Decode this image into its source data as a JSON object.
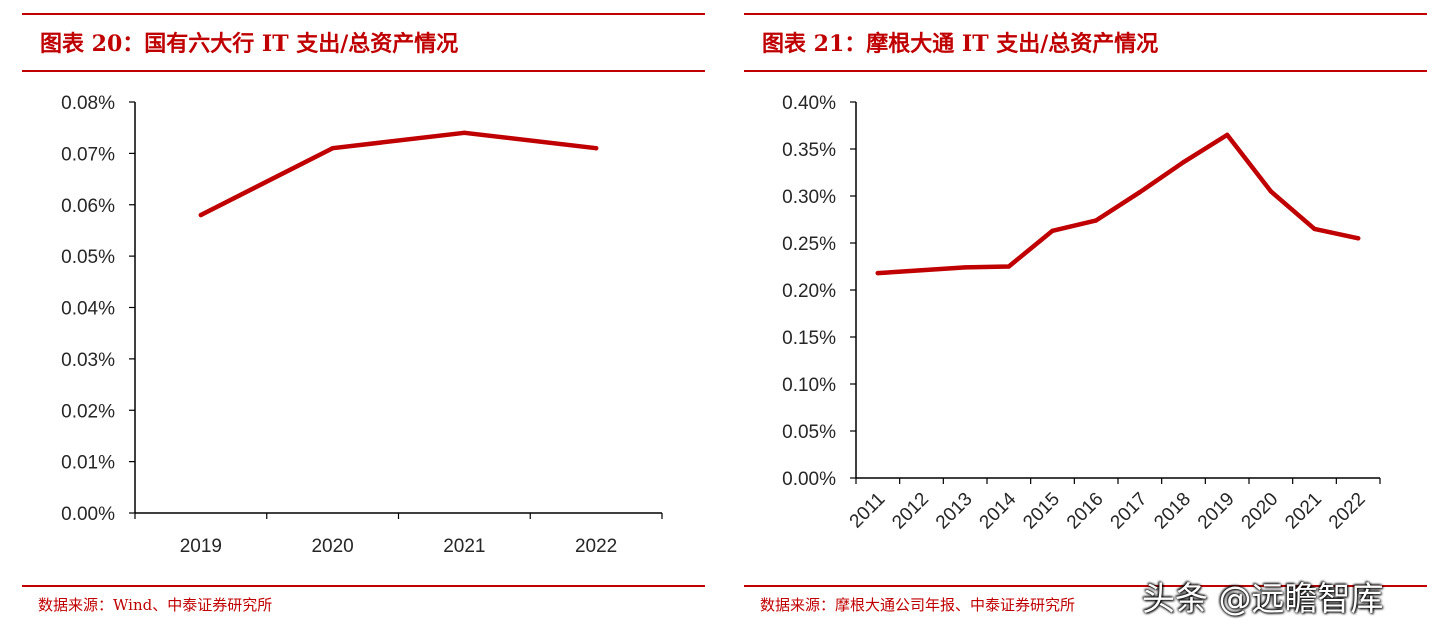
{
  "panels": [
    {
      "title": "图表 20：国有六大行 IT 支出/总资产情况",
      "source": "数据来源：Wind、中泰证券研究所"
    },
    {
      "title": "图表 21：摩根大通 IT 支出/总资产情况",
      "source": "数据来源：摩根大通公司年报、中泰证券研究所"
    }
  ],
  "watermark": "头条 @远瞻智库",
  "chart_data": [
    {
      "type": "line",
      "title": "",
      "xlabel": "",
      "ylabel": "",
      "categories": [
        "2019",
        "2020",
        "2021",
        "2022"
      ],
      "series": [
        {
          "values": [
            0.058,
            0.071,
            0.074,
            0.071
          ]
        }
      ],
      "ylim": [
        0,
        0.08
      ],
      "yticks": [
        "0.00%",
        "0.01%",
        "0.02%",
        "0.03%",
        "0.04%",
        "0.05%",
        "0.06%",
        "0.07%",
        "0.08%"
      ],
      "x_tick_rotation": 0,
      "grid": false,
      "color": "#c00000"
    },
    {
      "type": "line",
      "title": "",
      "xlabel": "",
      "ylabel": "",
      "categories": [
        "2011",
        "2012",
        "2013",
        "2014",
        "2015",
        "2016",
        "2017",
        "2018",
        "2019",
        "2020",
        "2021",
        "2022"
      ],
      "series": [
        {
          "values": [
            0.218,
            0.221,
            0.224,
            0.225,
            0.263,
            0.274,
            0.304,
            0.336,
            0.365,
            0.305,
            0.265,
            0.255
          ]
        }
      ],
      "ylim": [
        0,
        0.4
      ],
      "yticks": [
        "0.00%",
        "0.05%",
        "0.10%",
        "0.15%",
        "0.20%",
        "0.25%",
        "0.30%",
        "0.35%",
        "0.40%"
      ],
      "x_tick_rotation": -45,
      "grid": false,
      "color": "#c00000"
    }
  ]
}
